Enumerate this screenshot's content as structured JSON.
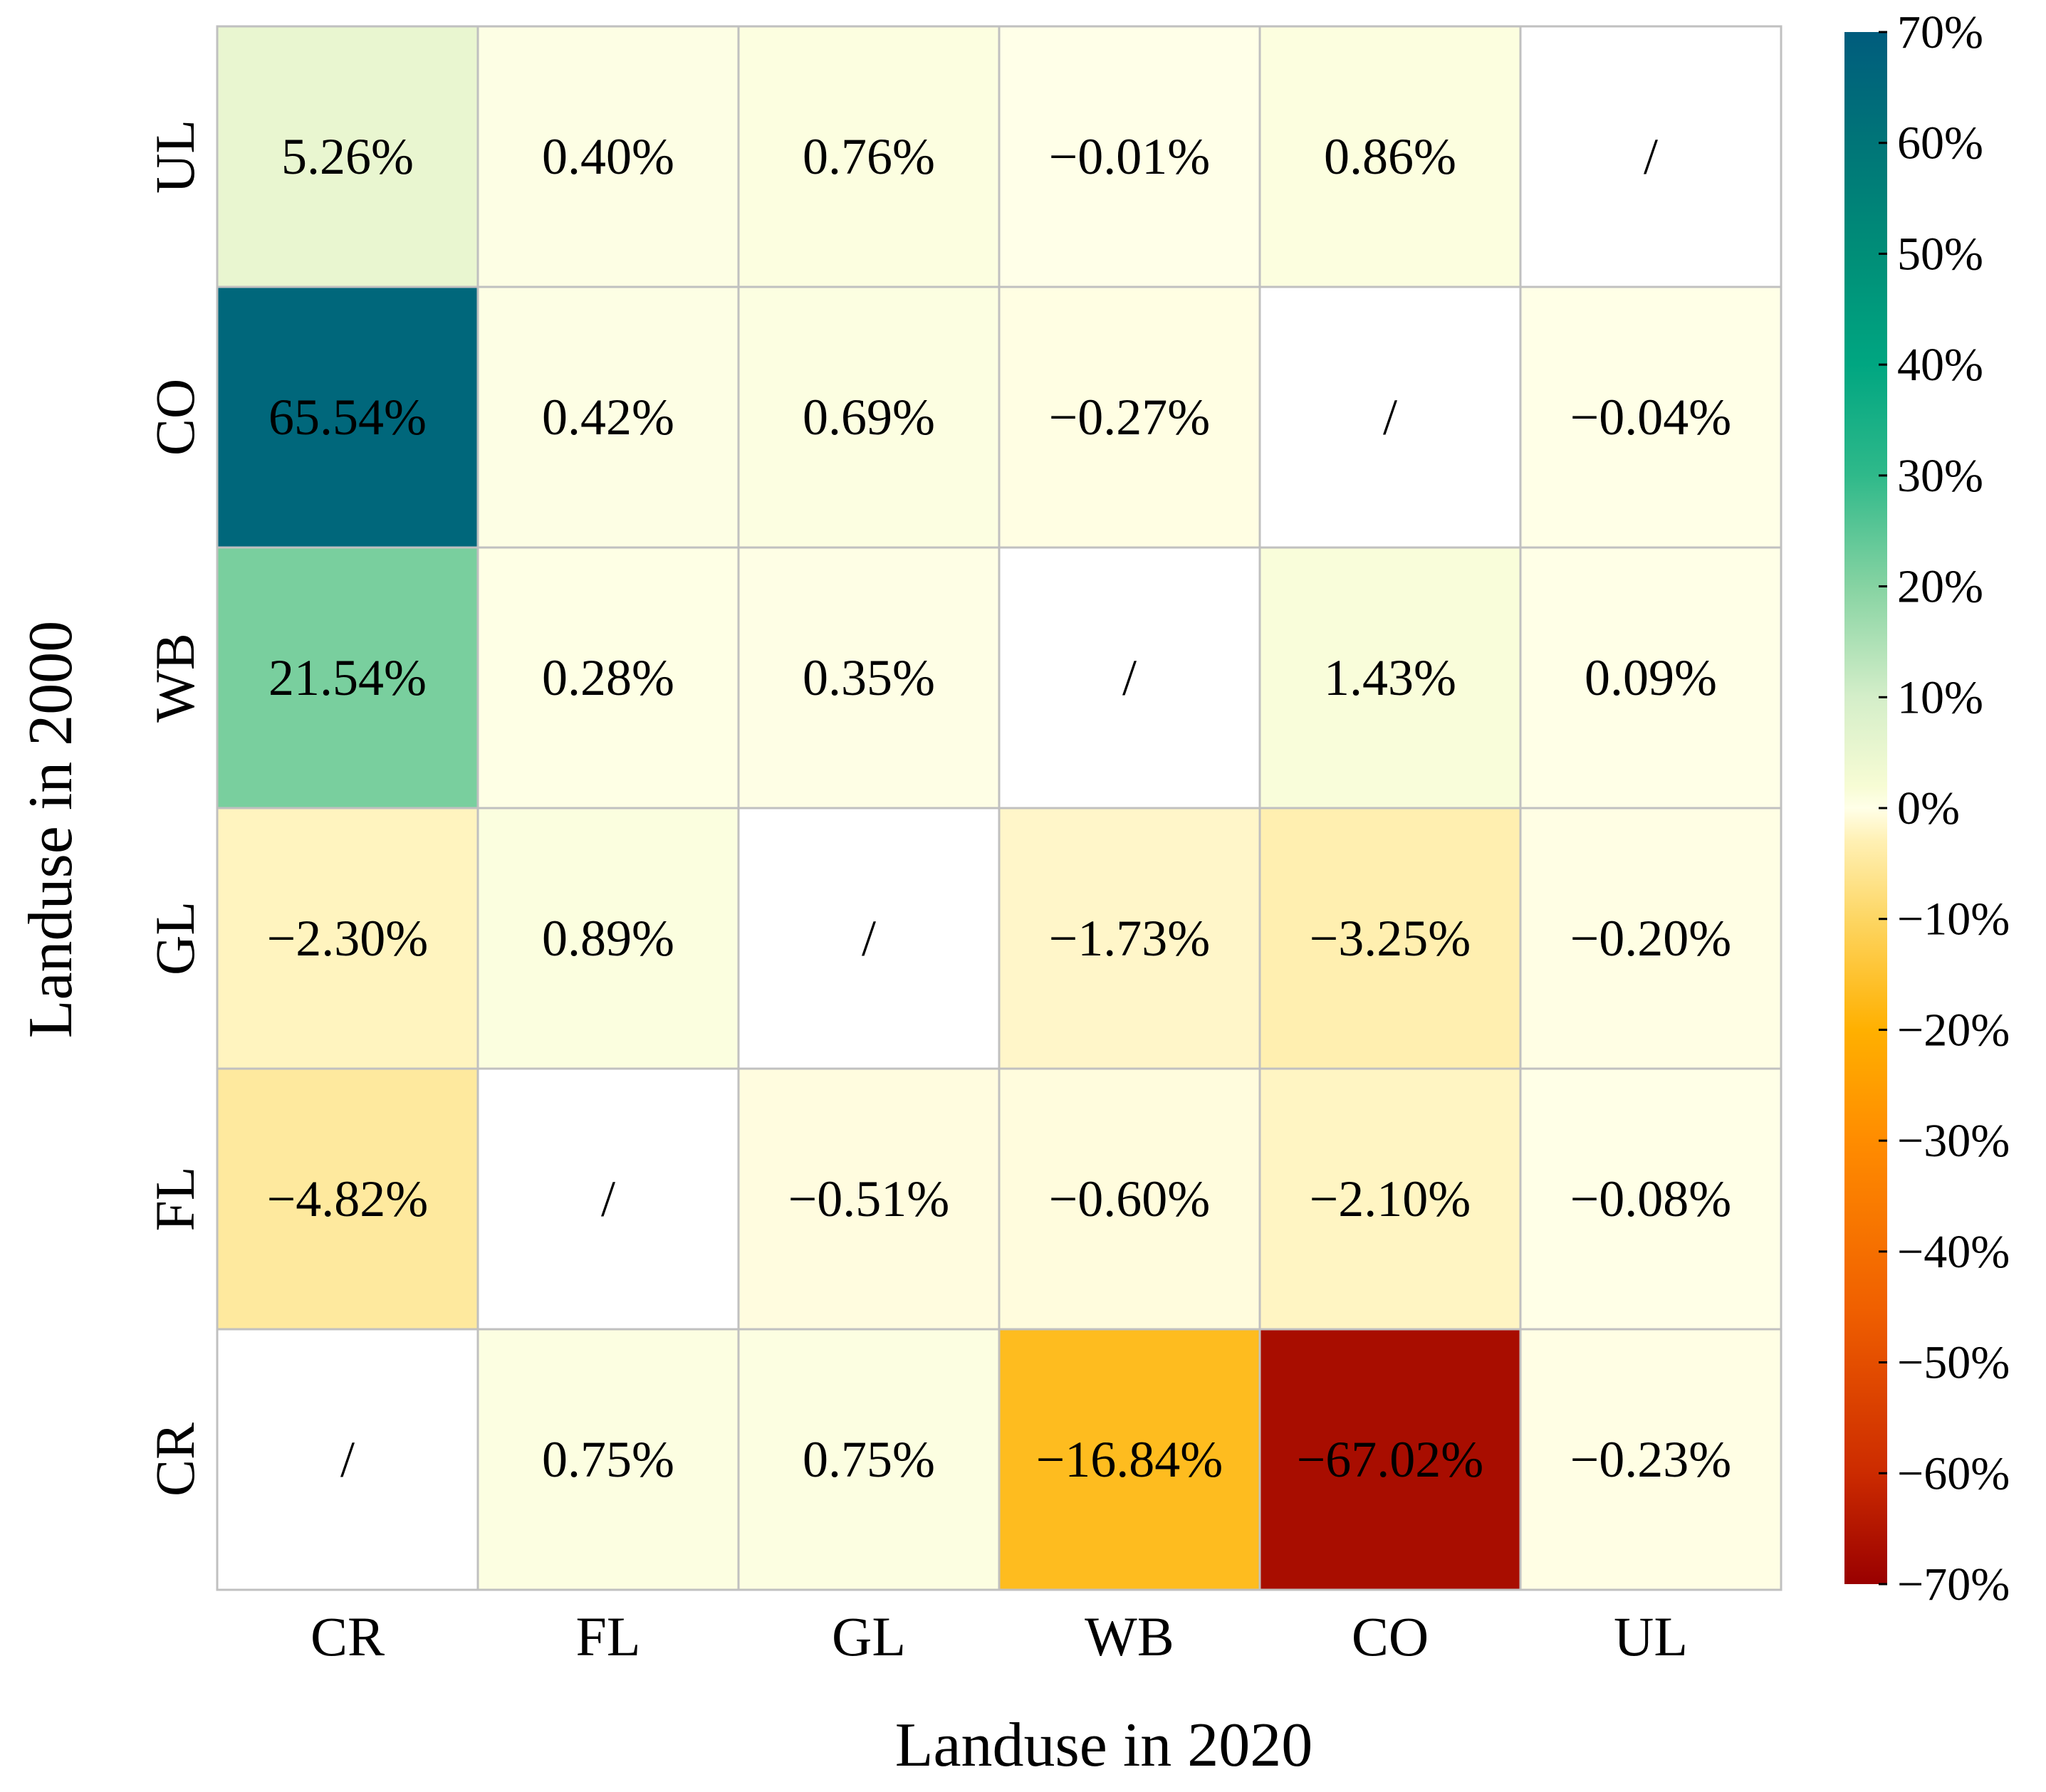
{
  "chart_data": {
    "type": "heatmap",
    "xlabel": "Landuse in 2020",
    "ylabel": "Landuse in 2000",
    "x_categories": [
      "CR",
      "FL",
      "GL",
      "WB",
      "CO",
      "UL"
    ],
    "y_categories_top_to_bottom": [
      "UL",
      "CO",
      "WB",
      "GL",
      "FL",
      "CR"
    ],
    "rows": [
      {
        "y": "UL",
        "values": [
          5.26,
          0.4,
          0.76,
          -0.01,
          0.86,
          null
        ],
        "labels": [
          "5.26%",
          "0.40%",
          "0.76%",
          "−0.01%",
          "0.86%",
          "/"
        ]
      },
      {
        "y": "CO",
        "values": [
          65.54,
          0.42,
          0.69,
          -0.27,
          null,
          -0.04
        ],
        "labels": [
          "65.54%",
          "0.42%",
          "0.69%",
          "−0.27%",
          "/",
          "−0.04%"
        ]
      },
      {
        "y": "WB",
        "values": [
          21.54,
          0.28,
          0.35,
          null,
          1.43,
          0.09
        ],
        "labels": [
          "21.54%",
          "0.28%",
          "0.35%",
          "/",
          "1.43%",
          "0.09%"
        ]
      },
      {
        "y": "GL",
        "values": [
          -2.3,
          0.89,
          null,
          -1.73,
          -3.25,
          -0.2
        ],
        "labels": [
          "−2.30%",
          "0.89%",
          "/",
          "−1.73%",
          "−3.25%",
          "−0.20%"
        ]
      },
      {
        "y": "FL",
        "values": [
          -4.82,
          null,
          -0.51,
          -0.6,
          -2.1,
          -0.08
        ],
        "labels": [
          "−4.82%",
          "/",
          "−0.51%",
          "−0.60%",
          "−2.10%",
          "−0.08%"
        ]
      },
      {
        "y": "CR",
        "values": [
          null,
          0.75,
          0.75,
          -16.84,
          -67.02,
          -0.23
        ],
        "labels": [
          "/",
          "0.75%",
          "0.75%",
          "−16.84%",
          "−67.02%",
          "−0.23%"
        ]
      }
    ],
    "colorbar": {
      "range": [
        -70,
        70
      ],
      "ticks": [
        70,
        60,
        50,
        40,
        30,
        20,
        10,
        0,
        -10,
        -20,
        -30,
        -40,
        -50,
        -60,
        -70
      ],
      "tick_labels": [
        "70%",
        "60%",
        "50%",
        "40%",
        "30%",
        "20%",
        "10%",
        "0%",
        "−10%",
        "−20%",
        "−30%",
        "−40%",
        "−50%",
        "−60%",
        "−70%"
      ],
      "stops": [
        {
          "value": -70,
          "color": "#990000"
        },
        {
          "value": -60,
          "color": "#cc2b00"
        },
        {
          "value": -45,
          "color": "#f06000"
        },
        {
          "value": -30,
          "color": "#ff8c00"
        },
        {
          "value": -20,
          "color": "#ffb000"
        },
        {
          "value": -10,
          "color": "#fdd663"
        },
        {
          "value": -3,
          "color": "#fff0b3"
        },
        {
          "value": 0,
          "color": "#ffffe8"
        },
        {
          "value": 2,
          "color": "#f7fcd4"
        },
        {
          "value": 10,
          "color": "#d4eec9"
        },
        {
          "value": 20,
          "color": "#86d3a2"
        },
        {
          "value": 30,
          "color": "#2fb98a"
        },
        {
          "value": 40,
          "color": "#00a681"
        },
        {
          "value": 50,
          "color": "#008e78"
        },
        {
          "value": 60,
          "color": "#007578"
        },
        {
          "value": 70,
          "color": "#005c7d"
        }
      ],
      "na_color": "#ffffff"
    },
    "grid_color": "#c0c0c0"
  }
}
